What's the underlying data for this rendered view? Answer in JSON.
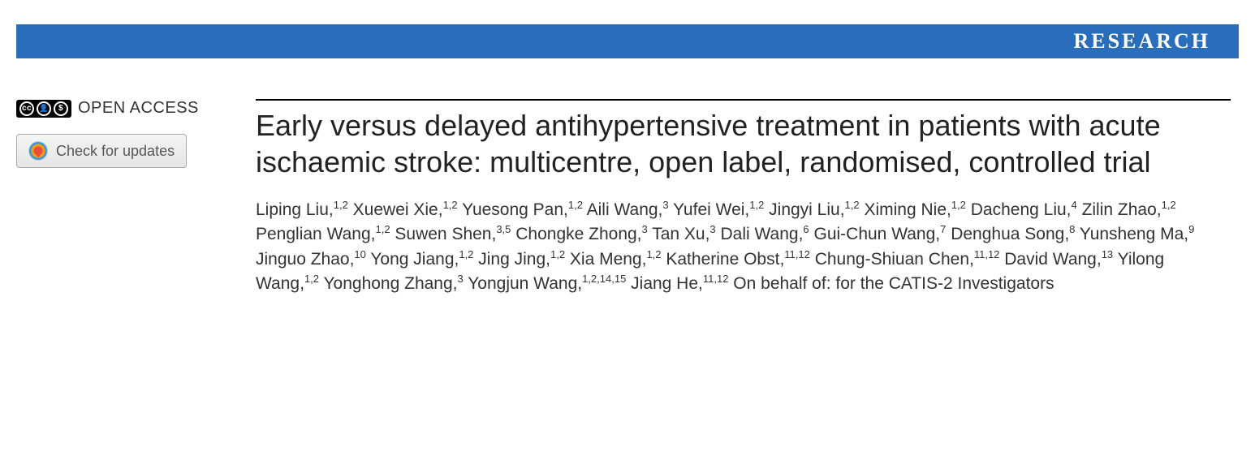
{
  "header": {
    "label": "RESEARCH",
    "background_color": "#2a6ebb",
    "text_color": "#ffffff"
  },
  "left_panel": {
    "open_access_label": "OPEN ACCESS",
    "cc_text": "cc",
    "cc_by": "BY",
    "cc_nc": "NC",
    "check_updates_label": "Check for updates"
  },
  "article": {
    "title": "Early versus delayed antihypertensive treatment in patients with acute ischaemic stroke: multicentre, open label, randomised, controlled trial",
    "authors": [
      {
        "name": "Liping Liu",
        "affil": "1,2"
      },
      {
        "name": "Xuewei Xie",
        "affil": "1,2"
      },
      {
        "name": "Yuesong Pan",
        "affil": "1,2"
      },
      {
        "name": "Aili Wang",
        "affil": "3"
      },
      {
        "name": "Yufei Wei",
        "affil": "1,2"
      },
      {
        "name": "Jingyi Liu",
        "affil": "1,2"
      },
      {
        "name": "Ximing Nie",
        "affil": "1,2"
      },
      {
        "name": "Dacheng Liu",
        "affil": "4"
      },
      {
        "name": "Zilin Zhao",
        "affil": "1,2"
      },
      {
        "name": "Penglian Wang",
        "affil": "1,2"
      },
      {
        "name": "Suwen Shen",
        "affil": "3,5"
      },
      {
        "name": "Chongke Zhong",
        "affil": "3"
      },
      {
        "name": "Tan Xu",
        "affil": "3"
      },
      {
        "name": "Dali Wang",
        "affil": "6"
      },
      {
        "name": "Gui-Chun Wang",
        "affil": "7"
      },
      {
        "name": "Denghua Song",
        "affil": "8"
      },
      {
        "name": "Yunsheng Ma",
        "affil": "9"
      },
      {
        "name": "Jinguo Zhao",
        "affil": "10"
      },
      {
        "name": "Yong Jiang",
        "affil": "1,2"
      },
      {
        "name": "Jing Jing",
        "affil": "1,2"
      },
      {
        "name": "Xia Meng",
        "affil": "1,2"
      },
      {
        "name": "Katherine Obst",
        "affil": "11,12"
      },
      {
        "name": "Chung-Shiuan Chen",
        "affil": "11,12"
      },
      {
        "name": "David Wang",
        "affil": "13"
      },
      {
        "name": "Yilong Wang",
        "affil": "1,2"
      },
      {
        "name": "Yonghong Zhang",
        "affil": "3"
      },
      {
        "name": "Yongjun Wang",
        "affil": "1,2,14,15"
      },
      {
        "name": "Jiang He",
        "affil": "11,12"
      }
    ],
    "on_behalf": "On behalf of: for the CATIS-2 Investigators"
  },
  "styling": {
    "body_width": 1546,
    "body_height": 583,
    "title_fontsize": 36,
    "title_color": "#222222",
    "author_fontsize": 21,
    "author_color": "#333333",
    "background_color": "#ffffff"
  }
}
